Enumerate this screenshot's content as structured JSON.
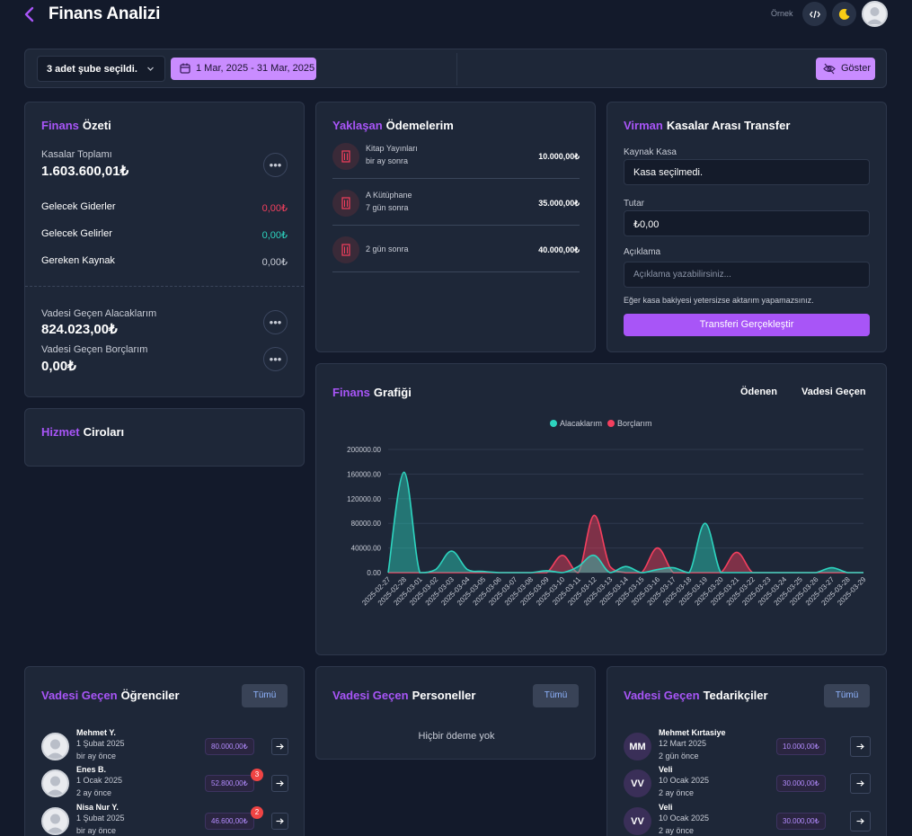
{
  "header": {
    "title": "Finans Analizi",
    "ornek": "Örnek",
    "code_icon": "code-icon",
    "theme_icon": "moon-icon"
  },
  "filter": {
    "branch_select": "3 adet şube seçildi.",
    "date_range": "1 Mar, 2025 - 31 Mar, 2025",
    "show_button": "Göster"
  },
  "ozet": {
    "title_hl": "Finans",
    "title": "Özeti",
    "kasalar_label": "Kasalar Toplamı",
    "kasalar_value": "1.603.600,01₺",
    "rows": [
      {
        "label": "Gelecek Giderler",
        "value": "0,00₺",
        "color": "#f43f5e"
      },
      {
        "label": "Gelecek Gelirler",
        "value": "0,00₺",
        "color": "#2dd4bf"
      },
      {
        "label": "Gereken Kaynak",
        "value": "0,00₺",
        "color": "#c8ccd6"
      }
    ],
    "alacak_label": "Vadesi Geçen Alacaklarım",
    "alacak_value": "824.023,00₺",
    "borc_label": "Vadesi Geçen Borçlarım",
    "borc_value": "0,00₺"
  },
  "hizmet": {
    "title_hl": "Hizmet",
    "title": "Ciroları"
  },
  "yaklasan": {
    "title_hl": "Yaklaşan",
    "title": "Ödemelerim",
    "items": [
      {
        "name": "Kitap Yayınları",
        "when": "bir ay sonra",
        "amount": "10.000,00₺"
      },
      {
        "name": "A Kütüphane",
        "when": "7 gün sonra",
        "amount": "35.000,00₺"
      },
      {
        "name": "",
        "when": "2 gün sonra",
        "amount": "40.000,00₺"
      }
    ]
  },
  "virman": {
    "title_hl": "Virman",
    "title": "Kasalar Arası Transfer",
    "kaynak_label": "Kaynak Kasa",
    "kaynak_value": "Kasa seçilmedi.",
    "tutar_label": "Tutar",
    "tutar_value": "₺0,00",
    "aciklama_label": "Açıklama",
    "aciklama_placeholder": "Açıklama yazabilirsiniz...",
    "note": "Eğer kasa bakiyesi yetersizse aktarım yapamazsınız.",
    "button": "Transferi Gerçekleştir"
  },
  "grafik": {
    "title_hl": "Finans",
    "title": "Grafiği",
    "tabs": [
      "Ödenen",
      "Vadesi Geçen"
    ]
  },
  "chart_data": {
    "type": "area",
    "title": "",
    "xlabel": "",
    "ylabel": "",
    "ylim": [
      0,
      200000
    ],
    "y_ticks": [
      "0.00",
      "40000.00",
      "80000.00",
      "120000.00",
      "160000.00",
      "200000.00"
    ],
    "legend_position": "top",
    "categories": [
      "2025-02-27",
      "2025-02-28",
      "2025-03-01",
      "2025-03-02",
      "2025-03-03",
      "2025-03-04",
      "2025-03-05",
      "2025-03-06",
      "2025-03-07",
      "2025-03-08",
      "2025-03-09",
      "2025-03-10",
      "2025-03-11",
      "2025-03-12",
      "2025-03-13",
      "2025-03-14",
      "2025-03-15",
      "2025-03-16",
      "2025-03-17",
      "2025-03-18",
      "2025-03-19",
      "2025-03-20",
      "2025-03-21",
      "2025-03-22",
      "2025-03-23",
      "2025-03-24",
      "2025-03-25",
      "2025-03-26",
      "2025-03-27",
      "2025-03-28",
      "2025-03-29"
    ],
    "series": [
      {
        "name": "Alacaklarım",
        "color": "#2dd4bf",
        "values": [
          0,
          163000,
          0,
          5000,
          35000,
          5000,
          2000,
          0,
          0,
          0,
          3000,
          0,
          10000,
          28000,
          0,
          10000,
          0,
          5000,
          8000,
          0,
          80000,
          0,
          0,
          0,
          0,
          0,
          0,
          0,
          8000,
          0,
          0
        ]
      },
      {
        "name": "Borçlarım",
        "color": "#f43f5e",
        "values": [
          0,
          0,
          0,
          0,
          0,
          0,
          0,
          0,
          0,
          0,
          0,
          28000,
          0,
          93000,
          10000,
          0,
          0,
          40000,
          0,
          0,
          0,
          0,
          33000,
          0,
          0,
          0,
          0,
          0,
          0,
          0,
          0
        ]
      }
    ]
  },
  "ogrenciler": {
    "title_hl": "Vadesi Geçen",
    "title": "Öğrenciler",
    "tumu": "Tümü",
    "items": [
      {
        "name": "Mehmet Y.",
        "date": "1 Şubat 2025",
        "rel": "bir ay önce",
        "amount": "80.000,00₺",
        "badge": ""
      },
      {
        "name": "Enes B.",
        "date": "1 Ocak 2025",
        "rel": "2 ay önce",
        "amount": "52.800,00₺",
        "badge": "3"
      },
      {
        "name": "Nisa Nur Y.",
        "date": "1 Şubat 2025",
        "rel": "bir ay önce",
        "amount": "46.600,00₺",
        "badge": "2"
      }
    ]
  },
  "personeller": {
    "title_hl": "Vadesi Geçen",
    "title": "Personeller",
    "tumu": "Tümü",
    "empty": "Hiçbir ödeme yok"
  },
  "tedarikciler": {
    "title_hl": "Vadesi Geçen",
    "title": "Tedarikçiler",
    "tumu": "Tümü",
    "items": [
      {
        "initials": "MM",
        "name": "Mehmet Kırtasiye",
        "date": "12 Mart 2025",
        "rel": "2 gün önce",
        "amount": "10.000,00₺"
      },
      {
        "initials": "VV",
        "name": "Veli",
        "date": "10 Ocak 2025",
        "rel": "2 ay önce",
        "amount": "30.000,00₺"
      },
      {
        "initials": "VV",
        "name": "Veli",
        "date": "10 Ocak 2025",
        "rel": "2 ay önce",
        "amount": "30.000,00₺"
      }
    ]
  }
}
